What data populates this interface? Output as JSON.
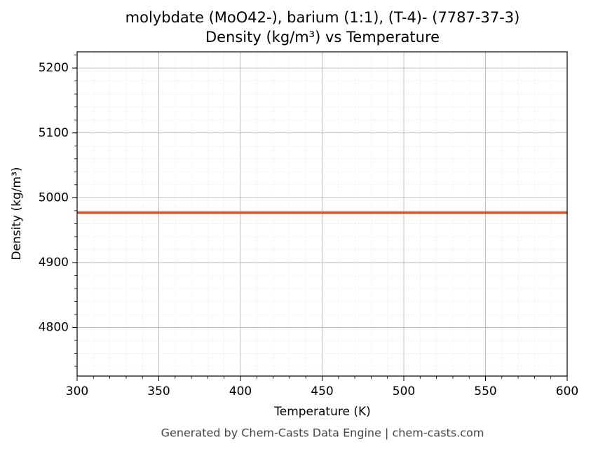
{
  "chart_data": {
    "type": "line",
    "title": "molybdate (MoO42-), barium (1:1), (T-4)- (7787-37-3)",
    "subtitle": "Density (kg/m³) vs Temperature",
    "x_label": "Temperature (K)",
    "y_label": "Density (kg/m³)",
    "footer": "Generated by Chem-Casts Data Engine | chem-casts.com",
    "x": [
      300,
      600
    ],
    "series": [
      {
        "name": "Density",
        "color": "#c8532a",
        "values": [
          4977,
          4977
        ]
      }
    ],
    "xlim": [
      300,
      600
    ],
    "xticks": [
      300,
      350,
      400,
      450,
      500,
      550,
      600
    ],
    "ylim": [
      4725,
      5225
    ],
    "yticks": [
      4800,
      4900,
      5000,
      5100,
      5200
    ],
    "grid": true
  }
}
